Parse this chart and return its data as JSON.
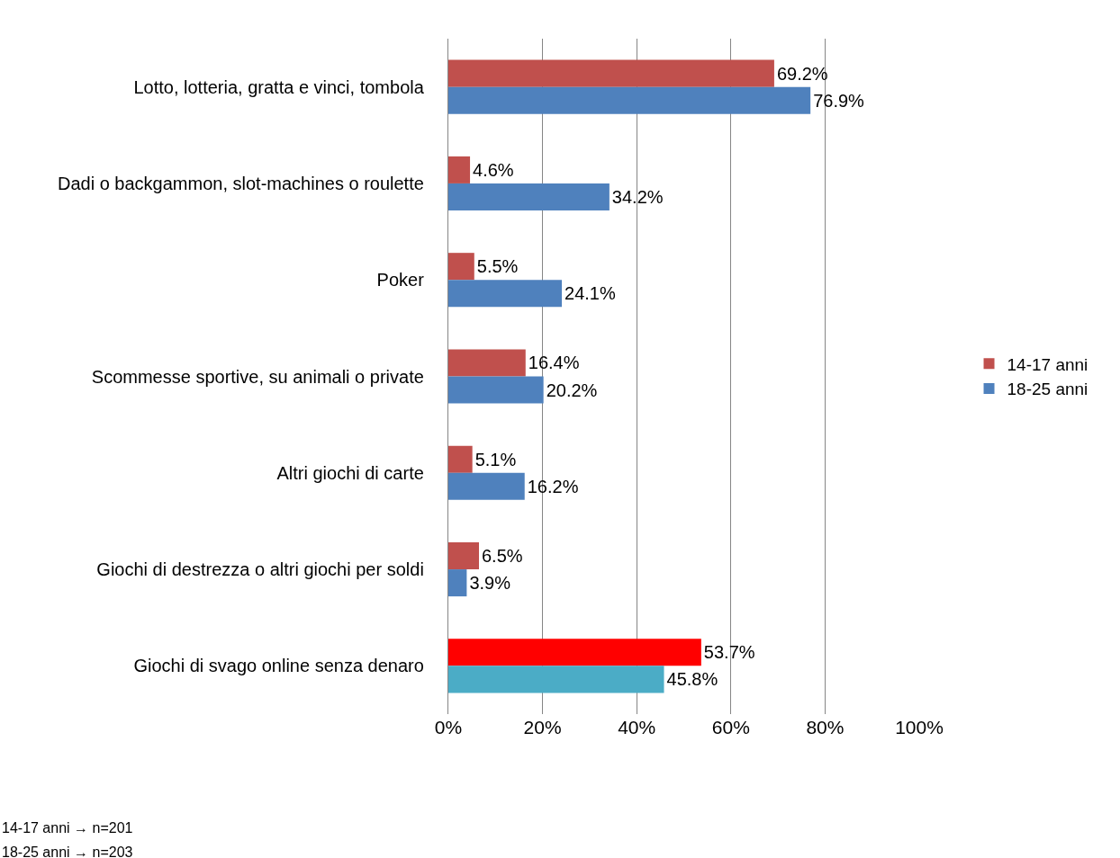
{
  "chart_data": {
    "type": "bar",
    "orientation": "horizontal",
    "categories": [
      "Lotto, lotteria, gratta e vinci, tombola",
      "Dadi o backgammon, slot-machines o roulette",
      "Poker",
      "Scommesse sportive, su animali o private",
      "Altri giochi di carte",
      "Giochi di destrezza o altri giochi per soldi",
      "Giochi di svago online senza denaro"
    ],
    "series": [
      {
        "name": "14-17 anni",
        "color": "#c0504d",
        "colors": [
          null,
          null,
          null,
          null,
          null,
          null,
          "#ff0000"
        ],
        "values": [
          69.2,
          4.6,
          5.5,
          16.4,
          5.1,
          6.5,
          53.7
        ],
        "value_labels": [
          "69.2%",
          "4.6%",
          "5.5%",
          "16.4%",
          "5.1%",
          "6.5%",
          "53.7%"
        ]
      },
      {
        "name": "18-25 anni",
        "color": "#4f81bd",
        "colors": [
          null,
          null,
          null,
          null,
          null,
          null,
          "#4bacc6"
        ],
        "values": [
          76.9,
          34.2,
          24.1,
          20.2,
          16.2,
          3.9,
          45.8
        ],
        "value_labels": [
          "76.9%",
          "34.2%",
          "24.1%",
          "20.2%",
          "16.2%",
          "3.9%",
          "45.8%"
        ]
      }
    ],
    "xlim": [
      0,
      100
    ],
    "xticks": [
      {
        "value": 0,
        "label": "0%"
      },
      {
        "value": 20,
        "label": "20%"
      },
      {
        "value": 40,
        "label": "40%"
      },
      {
        "value": 60,
        "label": "60%"
      },
      {
        "value": 80,
        "label": "80%"
      },
      {
        "value": 100,
        "label": "100%"
      }
    ],
    "grid": "x",
    "legend": "right",
    "annotations": [
      "14-17 anni → n=201",
      "18-25 anni → n=203"
    ]
  }
}
